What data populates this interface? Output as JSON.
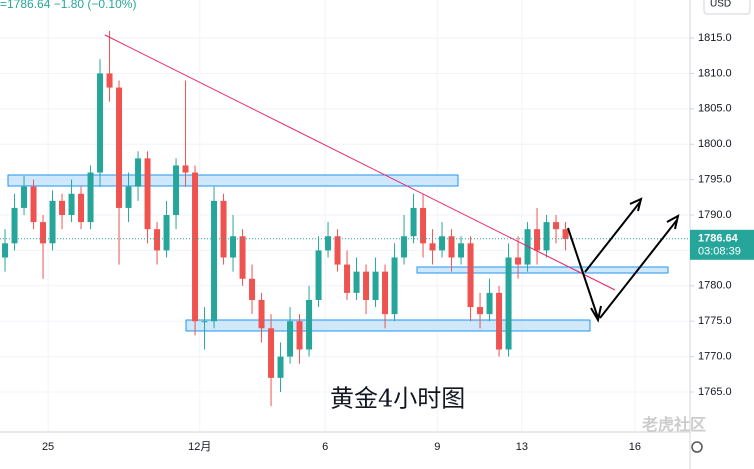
{
  "chart_data": {
    "type": "candlestick",
    "header": "=1786.64 −1.80 (−0.10%)",
    "currency": "USD",
    "countdown": "03:08:39",
    "annotation": "黄金4小时图",
    "watermark": "老虎社区",
    "x": [
      0,
      1,
      2,
      3,
      4,
      5,
      6,
      7,
      8,
      9,
      10,
      11,
      12,
      13,
      14,
      15,
      16,
      17,
      18,
      19,
      20,
      21,
      22,
      23,
      24,
      25,
      26,
      27,
      28,
      29,
      30,
      31,
      32,
      33,
      34,
      35,
      36,
      37,
      38,
      39,
      40,
      41,
      42,
      43,
      44,
      45,
      46,
      47,
      48,
      49,
      50,
      51,
      52,
      53,
      54,
      55,
      56,
      57,
      58,
      59
    ],
    "open": [
      1784,
      1786,
      1791,
      1794,
      1789,
      1786,
      1792,
      1790,
      1793,
      1789,
      1796,
      1810,
      1808,
      1791,
      1794,
      1798,
      1788,
      1785,
      1790,
      1797,
      1796,
      1775,
      1775,
      1792,
      1784,
      1787,
      1781,
      1778,
      1774,
      1767,
      1770,
      1775,
      1771,
      1778,
      1785,
      1787,
      1783,
      1779,
      1782,
      1778,
      1782,
      1776,
      1784,
      1787,
      1791,
      1786,
      1785,
      1787,
      1784,
      1786,
      1777,
      1776,
      1779,
      1771,
      1784,
      1783,
      1788,
      1785,
      1789,
      1788
    ],
    "high": [
      1788,
      1793,
      1795.5,
      1795,
      1790,
      1793.5,
      1793,
      1795,
      1794,
      1797,
      1812,
      1816,
      1809,
      1796,
      1799,
      1799,
      1789,
      1792,
      1798,
      1809,
      1797,
      1777,
      1794,
      1793,
      1790,
      1788,
      1783,
      1779,
      1776,
      1772,
      1777,
      1776,
      1780,
      1787,
      1789,
      1788,
      1785,
      1784,
      1783,
      1784,
      1783,
      1786,
      1790,
      1793,
      1793,
      1788,
      1789,
      1788,
      1787,
      1787,
      1779,
      1781,
      1780,
      1786,
      1787,
      1789,
      1791,
      1790,
      1790,
      1789
    ],
    "low": [
      1782,
      1785,
      1790,
      1788,
      1781,
      1785,
      1788,
      1789,
      1788,
      1788,
      1794,
      1806,
      1783,
      1789,
      1792,
      1786,
      1783,
      1784,
      1788,
      1794,
      1773,
      1771,
      1774,
      1783,
      1782,
      1780,
      1776,
      1772,
      1763,
      1765,
      1769,
      1769,
      1770,
      1777,
      1784,
      1782,
      1778,
      1778,
      1776,
      1777,
      1774,
      1775,
      1783,
      1786,
      1784,
      1783,
      1784,
      1782,
      1783,
      1775,
      1774,
      1775,
      1770,
      1770,
      1781,
      1782,
      1783,
      1784,
      1786,
      1785
    ],
    "close": [
      1786,
      1791,
      1794,
      1789,
      1786,
      1792,
      1790,
      1793,
      1789,
      1796,
      1810,
      1808,
      1791,
      1794,
      1798,
      1788,
      1785,
      1790,
      1797,
      1796,
      1775,
      1775,
      1792,
      1784,
      1787,
      1781,
      1778,
      1774,
      1767,
      1770,
      1775,
      1771,
      1778,
      1785,
      1787,
      1783,
      1779,
      1782,
      1778,
      1782,
      1776,
      1784,
      1787,
      1791,
      1786,
      1785,
      1787,
      1784,
      1786,
      1777,
      1776,
      1779,
      1771,
      1784,
      1783,
      1788,
      1785,
      1789,
      1788,
      1786.64
    ],
    "up_color": "#26a69a",
    "down_color": "#ef5350",
    "xlim": [
      -0.53,
      72.1
    ],
    "ylim": [
      1759.35,
      1820.37
    ],
    "xticks": [
      {
        "value": 4.53,
        "label": "25"
      },
      {
        "value": 20.5,
        "label": "12月"
      },
      {
        "value": 33.7,
        "label": "6"
      },
      {
        "value": 45.5,
        "label": "9"
      },
      {
        "value": 54.4,
        "label": "13"
      },
      {
        "value": 66.3,
        "label": "16"
      }
    ],
    "yticks": [
      {
        "value": 1765,
        "label": "1765.0"
      },
      {
        "value": 1770,
        "label": "1770.0"
      },
      {
        "value": 1775,
        "label": "1775.0"
      },
      {
        "value": 1780,
        "label": "1780.0"
      },
      {
        "value": 1785,
        "label": "1785.0"
      },
      {
        "value": 1790,
        "label": "1790.0"
      },
      {
        "value": 1795,
        "label": "1795.0"
      },
      {
        "value": 1800,
        "label": "1800.0"
      },
      {
        "value": 1805,
        "label": "1805.0"
      },
      {
        "value": 1810,
        "label": "1810.0"
      },
      {
        "value": 1815,
        "label": "1815.0"
      }
    ],
    "grid": true
  }
}
